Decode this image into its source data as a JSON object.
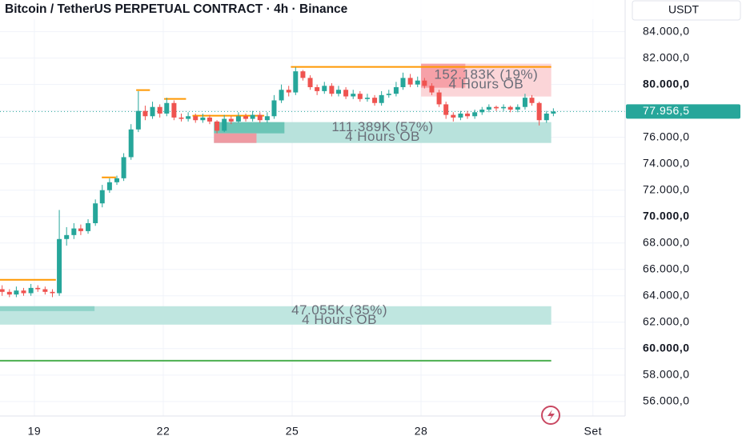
{
  "chart_data": {
    "type": "candlestick",
    "title": "Bitcoin / TetherUS PERPETUAL CONTRACT · 4h · Binance",
    "currency": "USDT",
    "up_color": "#26a69a",
    "down_color": "#ef5350",
    "xlim": [
      18.2,
      32.75
    ],
    "ylim": [
      54900,
      86400
    ],
    "xticks": [
      19,
      22,
      25,
      28,
      {
        "value": 32,
        "label": "Set"
      }
    ],
    "yticks": [
      {
        "value": 56000,
        "label": "56.000,0"
      },
      {
        "value": 58000,
        "label": "58.000,0"
      },
      {
        "value": 60000,
        "label": "60.000,0"
      },
      {
        "value": 62000,
        "label": "62.000,0"
      },
      {
        "value": 64000,
        "label": "64.000,0"
      },
      {
        "value": 66000,
        "label": "66.000,0"
      },
      {
        "value": 68000,
        "label": "68.000,0"
      },
      {
        "value": 70000,
        "label": "70.000,0"
      },
      {
        "value": 72000,
        "label": "72.000,0"
      },
      {
        "value": 74000,
        "label": "74.000,0"
      },
      {
        "value": 76000,
        "label": "76.000,0"
      },
      {
        "value": 78000,
        "label": "78.000,0"
      },
      {
        "value": 80000,
        "label": "80.000,0"
      },
      {
        "value": 82000,
        "label": "82.000,0"
      },
      {
        "value": 84000,
        "label": "84.000,0"
      }
    ],
    "grid": true,
    "last_price": {
      "value": 77956.5,
      "label": "77.956,5"
    },
    "x": [
      18.25,
      18.42,
      18.58,
      18.75,
      18.92,
      19.08,
      19.25,
      19.42,
      19.58,
      19.75,
      19.92,
      20.08,
      20.25,
      20.42,
      20.58,
      20.75,
      20.92,
      21.08,
      21.25,
      21.42,
      21.58,
      21.75,
      21.92,
      22.08,
      22.25,
      22.42,
      22.58,
      22.75,
      22.92,
      23.08,
      23.25,
      23.42,
      23.58,
      23.75,
      23.92,
      24.08,
      24.25,
      24.42,
      24.58,
      24.75,
      24.92,
      25.08,
      25.25,
      25.42,
      25.58,
      25.75,
      25.92,
      26.08,
      26.25,
      26.42,
      26.58,
      26.75,
      26.92,
      27.08,
      27.25,
      27.42,
      27.58,
      27.75,
      27.92,
      28.08,
      28.25,
      28.42,
      28.58,
      28.75,
      28.92,
      29.08,
      29.25,
      29.42,
      29.58,
      29.75,
      29.92,
      30.08,
      30.25,
      30.42,
      30.58,
      30.75,
      30.92,
      31.08
    ],
    "open": [
      64500,
      64300,
      64100,
      64400,
      64200,
      64600,
      64500,
      64300,
      64200,
      68300,
      68600,
      69100,
      68900,
      69500,
      71000,
      72000,
      72600,
      72900,
      74500,
      76600,
      78000,
      77600,
      78300,
      77800,
      78600,
      77500,
      77400,
      77600,
      77300,
      77500,
      77200,
      76500,
      77400,
      77200,
      77600,
      77400,
      77700,
      77300,
      77600,
      78800,
      79600,
      79400,
      81000,
      80500,
      79800,
      79500,
      79900,
      79300,
      79600,
      79100,
      79300,
      78900,
      79000,
      78600,
      79200,
      79300,
      79800,
      80500,
      80000,
      80300,
      79900,
      79400,
      78500,
      77700,
      77500,
      77800,
      77600,
      77900,
      78100,
      78300,
      78200,
      78300,
      78100,
      78300,
      79000,
      78600,
      77300,
      77800
    ],
    "high": [
      64800,
      64500,
      64700,
      64600,
      64900,
      64800,
      64700,
      64500,
      70500,
      69200,
      69500,
      69400,
      69800,
      71300,
      72400,
      72900,
      73100,
      74800,
      77000,
      79500,
      78400,
      78700,
      78500,
      79000,
      78800,
      77800,
      77900,
      77800,
      77800,
      77700,
      77300,
      77700,
      77600,
      77900,
      77800,
      78000,
      77900,
      77900,
      79200,
      80000,
      79900,
      81300,
      81100,
      80700,
      80000,
      80200,
      80100,
      79900,
      79800,
      79600,
      79500,
      79300,
      79200,
      79500,
      79600,
      80200,
      80900,
      80800,
      80600,
      80500,
      80100,
      79600,
      78700,
      77900,
      78000,
      78000,
      78100,
      78300,
      78500,
      78400,
      78500,
      78400,
      78500,
      79300,
      79200,
      78700,
      78000,
      78200
    ],
    "low": [
      64000,
      63900,
      63900,
      64000,
      64000,
      64300,
      64100,
      63900,
      64000,
      67800,
      68300,
      68600,
      68700,
      69300,
      70700,
      71800,
      72400,
      72700,
      74300,
      76400,
      77300,
      77400,
      77500,
      77600,
      77300,
      77200,
      77200,
      77100,
      77100,
      77000,
      76300,
      76400,
      77000,
      77100,
      77200,
      77200,
      77100,
      77100,
      77400,
      78600,
      79100,
      79200,
      80300,
      79600,
      79200,
      79300,
      79100,
      79100,
      78900,
      78900,
      78700,
      78700,
      78400,
      78400,
      79000,
      79100,
      79600,
      79800,
      79800,
      79700,
      79200,
      78300,
      77400,
      77200,
      77300,
      77400,
      77400,
      77700,
      77900,
      78000,
      78000,
      77900,
      77900,
      78100,
      78400,
      76900,
      77100,
      77600
    ],
    "close": [
      64300,
      64100,
      64400,
      64200,
      64600,
      64500,
      64300,
      64200,
      68300,
      68600,
      69100,
      68900,
      69500,
      71000,
      72000,
      72600,
      72900,
      74500,
      76600,
      78000,
      77600,
      78300,
      77800,
      78600,
      77500,
      77400,
      77600,
      77300,
      77500,
      77200,
      76500,
      77400,
      77200,
      77600,
      77400,
      77700,
      77300,
      77600,
      78800,
      79600,
      79400,
      81000,
      80500,
      79800,
      79500,
      79900,
      79300,
      79600,
      79100,
      79300,
      78900,
      79000,
      78600,
      79200,
      79300,
      79800,
      80500,
      80000,
      80300,
      79900,
      79400,
      78500,
      77700,
      77500,
      77800,
      77600,
      77900,
      78100,
      78300,
      78200,
      78300,
      78100,
      78300,
      79000,
      78600,
      77300,
      77800,
      77956.5
    ],
    "zones": [
      {
        "label": "152.183K (19%)",
        "sublabel": "4 Hours OB",
        "x0": 28.0,
        "x1": 31.03,
        "top": 81575,
        "bottom": 79091,
        "color": "#fbd5d8",
        "core": [
          {
            "x1": 29.03,
            "top": 81575,
            "bottom": 79758,
            "color": "#f6a1a8"
          }
        ]
      },
      {
        "label": "111.389K (57%)",
        "sublabel": "4 Hours OB",
        "x0": 23.18,
        "x1": 31.03,
        "top": 77152,
        "bottom": 75576,
        "color": "#b8e2dc",
        "core": [
          {
            "x1": 24.82,
            "top": 77152,
            "bottom": 76303,
            "color": "#6cc5b6"
          },
          {
            "x1": 24.17,
            "top": 76303,
            "bottom": 75576,
            "color": "#ee9aa2"
          }
        ]
      },
      {
        "label": "47.055K (35%)",
        "sublabel": "4 Hours OB",
        "x0": 18.2,
        "x1": 31.03,
        "top": 63212,
        "bottom": 61818,
        "color": "#bfe6e0",
        "core": [
          {
            "x1": 20.4,
            "top": 63212,
            "bottom": 62848,
            "color": "#8fd3c8"
          }
        ]
      }
    ],
    "levels": [
      {
        "value": 81333,
        "x0": 24.97,
        "x1": 31.03,
        "color": "#ff9800"
      },
      {
        "value": 79576,
        "x0": 21.37,
        "x1": 21.69,
        "color": "#ff9800"
      },
      {
        "value": 78909,
        "x0": 22.02,
        "x1": 22.53,
        "color": "#ff9800"
      },
      {
        "value": 77636,
        "x0": 22.68,
        "x1": 24.35,
        "color": "#ff9800"
      },
      {
        "value": 72970,
        "x0": 20.57,
        "x1": 20.9,
        "color": "#ff9800"
      },
      {
        "value": 65212,
        "x0": 18.2,
        "x1": 19.5,
        "color": "#ff9800"
      },
      {
        "value": 59091,
        "x0": 18.2,
        "x1": 31.03,
        "color": "#4caf50"
      }
    ]
  }
}
